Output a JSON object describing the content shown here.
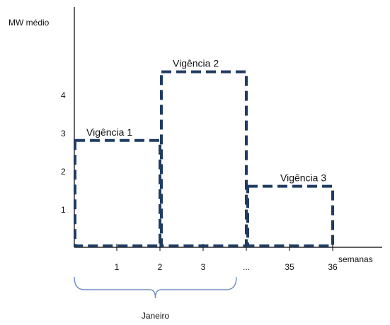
{
  "chart_data": {
    "type": "bar",
    "ylabel": "MW médio",
    "xlabel": "semanas",
    "y_ticks": [
      "1",
      "2",
      "3",
      "4"
    ],
    "x_ticks": [
      "1",
      "2",
      "3",
      "...",
      "35",
      "36"
    ],
    "series": [
      {
        "name": "Vigência 1",
        "from_tick": 0,
        "to_tick": 2,
        "value": 2.8
      },
      {
        "name": "Vigência 2",
        "from_tick": 2,
        "to_tick": 4,
        "value": 4.6
      },
      {
        "name": "Vigência 3",
        "from_tick": 4,
        "to_tick": 6,
        "value": 1.6
      }
    ],
    "annotations": [
      {
        "text": "Janeiro",
        "from_tick": 0,
        "to_tick": 4
      }
    ]
  }
}
